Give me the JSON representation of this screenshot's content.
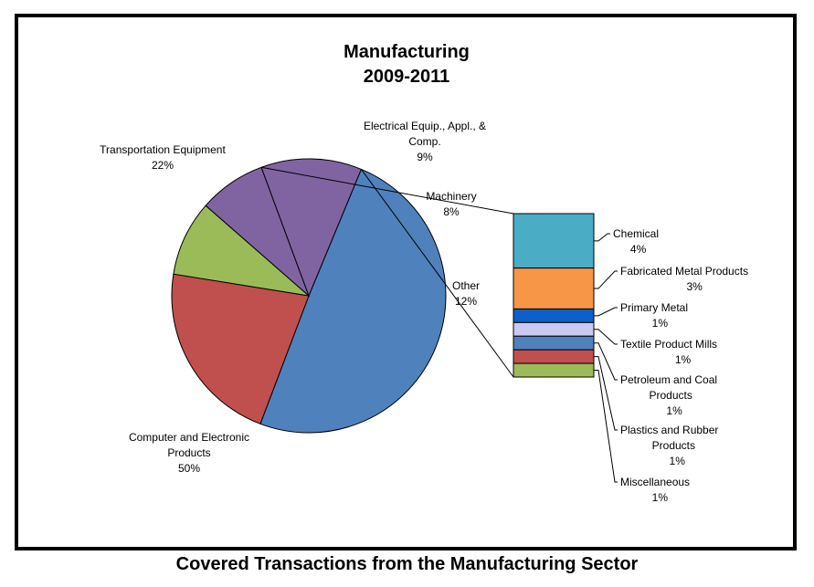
{
  "chart_data": {
    "type": "pie",
    "title": "Manufacturing",
    "subtitle": "2009-2011",
    "slices": [
      {
        "label": "Computer and Electronic Products",
        "value": 50,
        "value_label": "50%",
        "color": "#4F81BD"
      },
      {
        "label": "Transportation Equipment",
        "value": 22,
        "value_label": "22%",
        "color": "#C0504D"
      },
      {
        "label": "Electrical Equip., Appl., & Comp.",
        "value": 9,
        "value_label": "9%",
        "color": "#9BBB59"
      },
      {
        "label": "Machinery",
        "value": 8,
        "value_label": "8%",
        "color": "#8064A2"
      },
      {
        "label": "Other",
        "value": 12,
        "value_label": "12%",
        "color": "#8064A2"
      }
    ],
    "breakdown": {
      "of": "Other",
      "type": "stacked-bar",
      "segments": [
        {
          "label": "Chemical",
          "value": 4,
          "value_label": "4%",
          "color": "#4BACC6"
        },
        {
          "label": "Fabricated Metal Products",
          "value": 3,
          "value_label": "3%",
          "color": "#F79646"
        },
        {
          "label": "Primary Metal",
          "value": 1,
          "value_label": "1%",
          "color": "#0F5FC8"
        },
        {
          "label": "Textile Product Mills",
          "value": 1,
          "value_label": "1%",
          "color": "#C9C9F3"
        },
        {
          "label": "Petroleum and Coal Products",
          "value": 1,
          "value_label": "1%",
          "color": "#4F81BD"
        },
        {
          "label": "Plastics and Rubber Products",
          "value": 1,
          "value_label": "1%",
          "color": "#C0504D"
        },
        {
          "label": "Miscellaneous",
          "value": 1,
          "value_label": "1%",
          "color": "#9BBB59"
        }
      ]
    }
  },
  "caption": "Covered Transactions from the Manufacturing Sector"
}
